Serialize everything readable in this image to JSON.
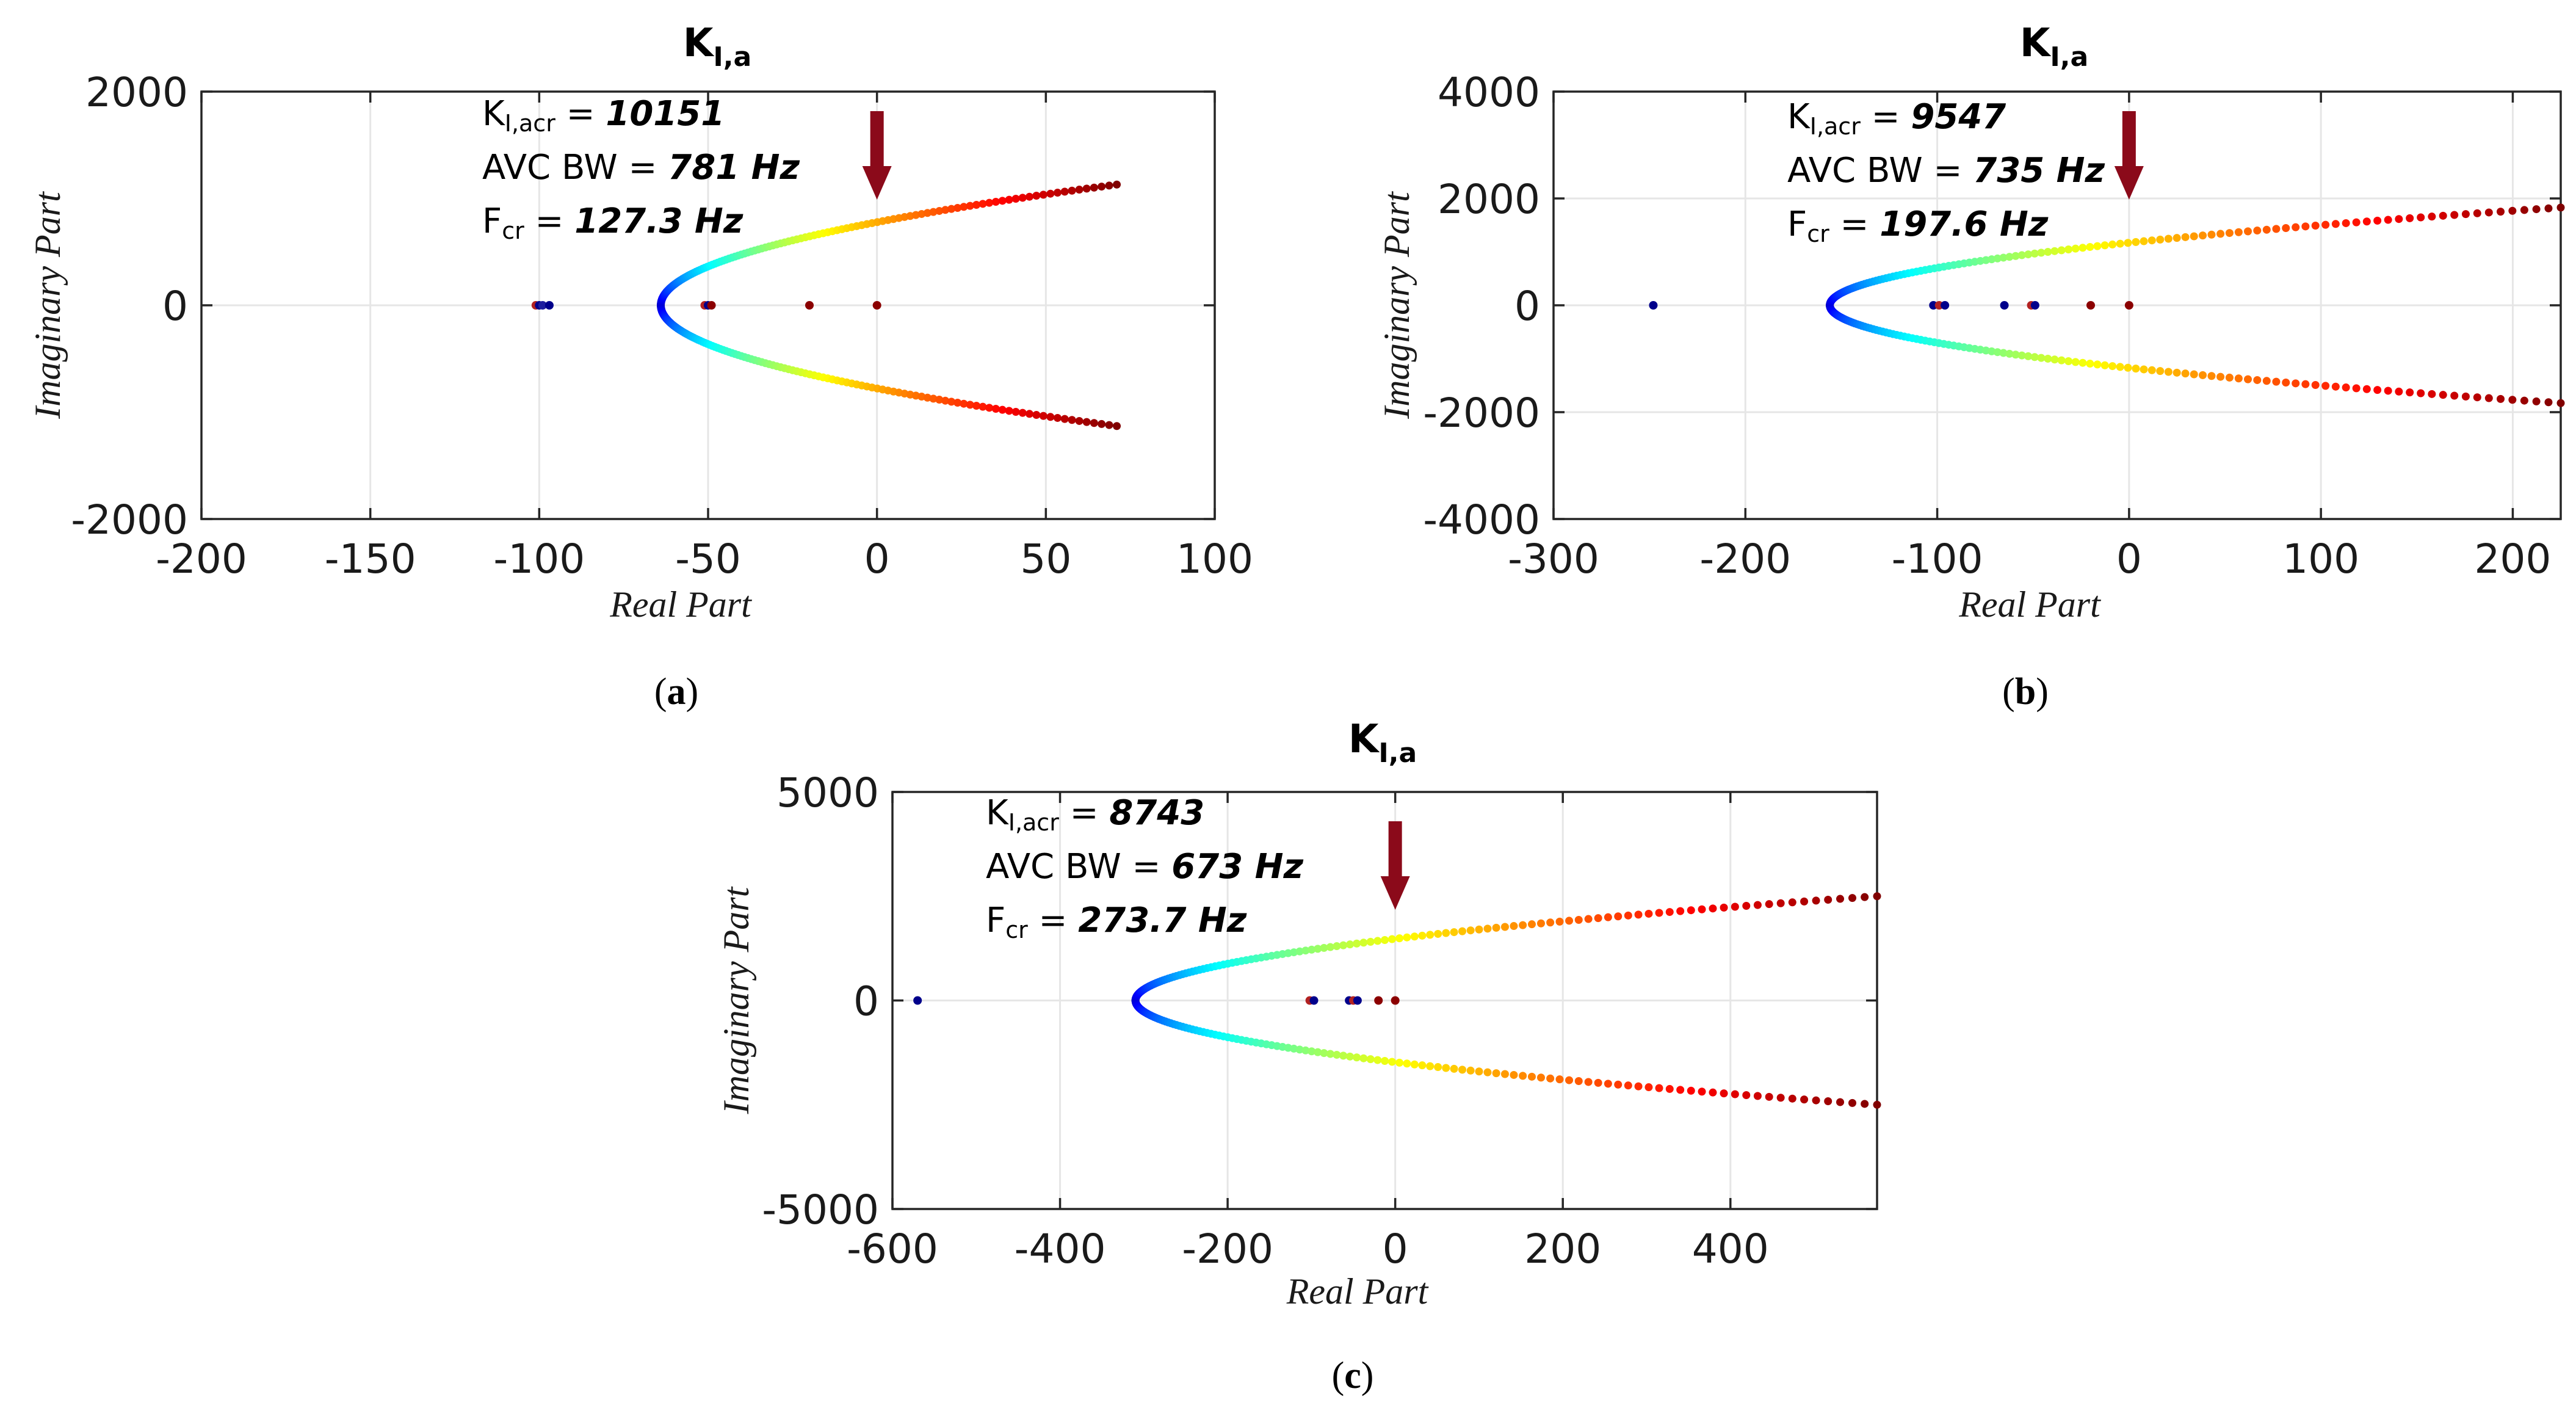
{
  "chart_data": [
    {
      "id": "a",
      "type": "scatter",
      "title_main": "K",
      "title_sub": "I,a",
      "xlabel": "Real Part",
      "ylabel": "Imaginary Part",
      "xlim": [
        -200,
        100
      ],
      "ylim": [
        -2000,
        2000
      ],
      "xticks": [
        -200,
        -150,
        -100,
        -50,
        0,
        50,
        100
      ],
      "yticks": [
        -2000,
        0,
        2000
      ],
      "xtick_labels": [
        "-200",
        "-150",
        "-100",
        "-50",
        "0",
        "50",
        "100"
      ],
      "ytick_labels": [
        "-2000",
        "0",
        "2000"
      ],
      "caption": "a",
      "arrow_x": 0,
      "annotation": {
        "k_label": "K",
        "k_sub": "I,acr",
        "k_value": "10151",
        "bw_label": "AVC BW",
        "bw_value": "781 Hz",
        "f_label": "F",
        "f_sub": "cr",
        "f_value": "127.3 Hz",
        "equals": "="
      },
      "branch": {
        "vertex": -64,
        "end_x": 71,
        "end_y": 1130,
        "n_points": 120
      },
      "real_poles": [
        {
          "x": -101,
          "c": "#b22222"
        },
        {
          "x": -100,
          "c": "#00008b"
        },
        {
          "x": -99,
          "c": "#1e1e9e"
        },
        {
          "x": -97,
          "c": "#00008b"
        },
        {
          "x": -51,
          "c": "#b22222"
        },
        {
          "x": -50,
          "c": "#00008b"
        },
        {
          "x": -49,
          "c": "#8b0000"
        },
        {
          "x": -20,
          "c": "#8b0000"
        },
        {
          "x": 0,
          "c": "#8b0000"
        }
      ]
    },
    {
      "id": "b",
      "type": "scatter",
      "title_main": "K",
      "title_sub": "I,a",
      "xlabel": "Real Part",
      "ylabel": "Imaginary Part",
      "xlim": [
        -300,
        225
      ],
      "ylim": [
        -4000,
        4000
      ],
      "xticks": [
        -300,
        -200,
        -100,
        0,
        100,
        200
      ],
      "yticks": [
        -4000,
        -2000,
        0,
        2000,
        4000
      ],
      "xtick_labels": [
        "-300",
        "-200",
        "-100",
        "0",
        "100",
        "200"
      ],
      "ytick_labels": [
        "-4000",
        "-2000",
        "0",
        "2000",
        "4000"
      ],
      "caption": "b",
      "arrow_x": 0,
      "annotation": {
        "k_label": "K",
        "k_sub": "I,acr",
        "k_value": "9547",
        "bw_label": "AVC BW",
        "bw_value": "735 Hz",
        "f_label": "F",
        "f_sub": "cr",
        "f_value": "197.6 Hz",
        "equals": "="
      },
      "branch": {
        "vertex": -156,
        "end_x": 225,
        "end_y": 1830,
        "n_points": 120
      },
      "real_poles": [
        {
          "x": -248,
          "c": "#00008b"
        },
        {
          "x": -102,
          "c": "#00008b"
        },
        {
          "x": -99,
          "c": "#b22222"
        },
        {
          "x": -96,
          "c": "#00008b"
        },
        {
          "x": -65,
          "c": "#00008b"
        },
        {
          "x": -51,
          "c": "#b22222"
        },
        {
          "x": -49,
          "c": "#00008b"
        },
        {
          "x": -20,
          "c": "#8b0000"
        },
        {
          "x": 0,
          "c": "#8b0000"
        }
      ]
    },
    {
      "id": "c",
      "type": "scatter",
      "title_main": "K",
      "title_sub": "I,a",
      "xlabel": "Real Part",
      "ylabel": "Imaginary Part",
      "xlim": [
        -600,
        575
      ],
      "ylim": [
        -5000,
        5000
      ],
      "xticks": [
        -600,
        -400,
        -200,
        0,
        200,
        400
      ],
      "yticks": [
        -5000,
        0,
        5000
      ],
      "xtick_labels": [
        "-600",
        "-400",
        "-200",
        "0",
        "200",
        "400"
      ],
      "ytick_labels": [
        "-5000",
        "0",
        "5000"
      ],
      "caption": "c",
      "arrow_x": 0,
      "annotation": {
        "k_label": "K",
        "k_sub": "I,acr",
        "k_value": "8743",
        "bw_label": "AVC BW",
        "bw_value": "673 Hz",
        "f_label": "F",
        "f_sub": "cr",
        "f_value": "273.7 Hz",
        "equals": "="
      },
      "branch": {
        "vertex": -310,
        "end_x": 575,
        "end_y": 2500,
        "n_points": 120
      },
      "real_poles": [
        {
          "x": -570,
          "c": "#00008b"
        },
        {
          "x": -102,
          "c": "#b22222"
        },
        {
          "x": -97,
          "c": "#00008b"
        },
        {
          "x": -55,
          "c": "#00008b"
        },
        {
          "x": -50,
          "c": "#b22222"
        },
        {
          "x": -45,
          "c": "#00008b"
        },
        {
          "x": -20,
          "c": "#8b0000"
        },
        {
          "x": 0,
          "c": "#8b0000"
        }
      ]
    }
  ],
  "colors": {
    "axis": "#262626",
    "grid": "#e6e6e6",
    "arrow": "#8b0a1a"
  }
}
